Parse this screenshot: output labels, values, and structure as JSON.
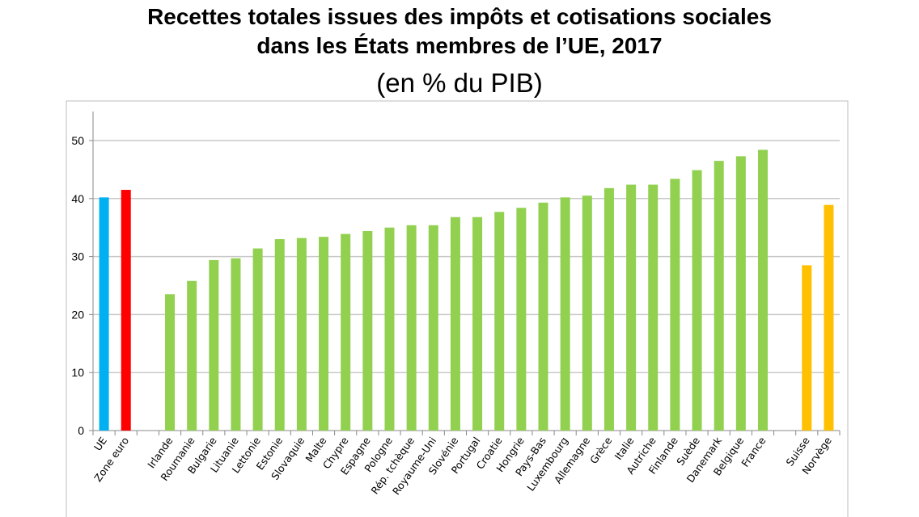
{
  "chart_data": {
    "type": "bar",
    "title": "Recettes totales issues des impôts et cotisations sociales dans les États membres de l’UE, 2017",
    "title_line1": "Recettes totales issues des impôts et cotisations sociales",
    "title_line2": "dans les États membres de l’UE, 2017",
    "subtitle": "(en % du PIB)",
    "xlabel": "",
    "ylabel": "",
    "ylim": [
      0,
      55
    ],
    "yticks": [
      0,
      10,
      20,
      30,
      40,
      50
    ],
    "grid": true,
    "legend": "none",
    "categories": [
      "UE",
      "Zone euro",
      "",
      "Irlande",
      "Roumanie",
      "Bulgarie",
      "Lituanie",
      "Lettonie",
      "Estonie",
      "Slovaquie",
      "Malte",
      "Chypre",
      "Espagne",
      "Pologne",
      "Rép. tchèque",
      "Royaume-Uni",
      "Slovénie",
      "Portugal",
      "Croatie",
      "Hongrie",
      "Pays-Bas",
      "Luxembourg",
      "Allemagne",
      "Grèce",
      "Italie",
      "Autriche",
      "Finlande",
      "Suède",
      "Danemark",
      "Belgique",
      "France",
      "",
      "Suisse",
      "Norvège"
    ],
    "values": [
      40.2,
      41.5,
      null,
      23.5,
      25.8,
      29.4,
      29.7,
      31.4,
      33.0,
      33.2,
      33.4,
      33.9,
      34.4,
      35.0,
      35.4,
      35.4,
      36.8,
      36.8,
      37.7,
      38.4,
      39.3,
      40.2,
      40.5,
      41.8,
      42.4,
      42.4,
      43.4,
      44.9,
      46.5,
      47.3,
      48.4,
      null,
      28.5,
      38.9
    ],
    "colors": {
      "UE": "#00b0f0",
      "Zone euro": "#ff0000",
      "country": "#92d050",
      "non_eu": "#ffc000"
    }
  }
}
